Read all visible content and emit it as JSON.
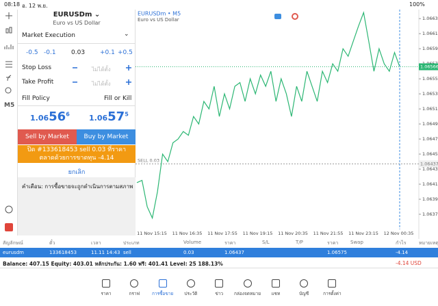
{
  "status_bar": {
    "time": "08:18",
    "date": "อ. 12 พ.ย.",
    "battery": "100%"
  },
  "sidebar": {
    "timeframe": "M5"
  },
  "order": {
    "symbol": "EURUSDm",
    "description": "Euro vs US Dollar",
    "execution": "Market Execution",
    "volume_steps": [
      "-0.5",
      "-0.1",
      "+0.1",
      "+0.5"
    ],
    "volume": "0.03",
    "stop_loss": {
      "label": "Stop Loss",
      "value": "ไม่ได้ตั้ง"
    },
    "take_profit": {
      "label": "Take Profit",
      "value": "ไม่ได้ตั้ง"
    },
    "fill_policy": {
      "label": "Fill Policy",
      "value": "Fill or Kill"
    },
    "bid": {
      "big": "1.06",
      "main": "56",
      "small": "6"
    },
    "ask": {
      "big": "1.06",
      "main": "57",
      "small": "5"
    },
    "sell_button": "Sell by Market",
    "buy_button": "Buy by Market",
    "close_notice": "ปิด #133618453 sell 0.03 ที่ราคาตลาดด้วยการขาดทุน -4.14",
    "cancel": "ยกเลิก",
    "warning": "คำเตือน: การซื้อขายจะถูกดำเนินการตามสภาพตลาด..."
  },
  "chart": {
    "type": "line",
    "title": "EURUSDm • M5",
    "subtitle": "Euro vs US Dollar",
    "color": "#2bb673",
    "ylim": [
      1.0635,
      1.06642
    ],
    "yticks": [
      {
        "value": 1.0663,
        "label": "1.06630"
      },
      {
        "value": 1.0661,
        "label": "1.06610"
      },
      {
        "value": 1.0659,
        "label": "1.06590"
      },
      {
        "value": 1.0657,
        "label": "1.06570"
      },
      {
        "value": 1.0655,
        "label": "1.06550"
      },
      {
        "value": 1.0653,
        "label": "1.06530"
      },
      {
        "value": 1.0651,
        "label": "1.06510"
      },
      {
        "value": 1.0649,
        "label": "1.06490"
      },
      {
        "value": 1.0647,
        "label": "1.06470"
      },
      {
        "value": 1.0645,
        "label": "1.06450"
      },
      {
        "value": 1.0643,
        "label": "1.06430"
      },
      {
        "value": 1.0641,
        "label": "1.06410"
      },
      {
        "value": 1.0639,
        "label": "1.06390"
      },
      {
        "value": 1.0637,
        "label": "1.06370"
      }
    ],
    "xticks": [
      "11 Nov 15:15",
      "11 Nov 16:35",
      "11 Nov 17:55",
      "11 Nov 19:15",
      "11 Nov 20:35",
      "11 Nov 21:55",
      "11 Nov 23:15",
      "12 Nov 00:35"
    ],
    "values": [
      1.06412,
      1.06415,
      1.0638,
      1.06365,
      1.064,
      1.0645,
      1.0644,
      1.06465,
      1.0647,
      1.0648,
      1.06475,
      1.065,
      1.0649,
      1.0652,
      1.0651,
      1.0654,
      1.065,
      1.0653,
      1.0651,
      1.0654,
      1.06545,
      1.0652,
      1.0655,
      1.0653,
      1.06555,
      1.0654,
      1.0656,
      1.0652,
      1.0655,
      1.0653,
      1.065,
      1.0654,
      1.0652,
      1.0656,
      1.0654,
      1.0652,
      1.0656,
      1.06545,
      1.0657,
      1.0656,
      1.0659,
      1.0658,
      1.066,
      1.0662,
      1.06638,
      1.066,
      1.0656,
      1.0659,
      1.0657,
      1.0656,
      1.06585,
      1.06566
    ],
    "current_price": {
      "value": 1.06566,
      "label": "1.06566"
    },
    "sell_line": {
      "value": 1.06437,
      "label": "1.06437",
      "text": "SELL 0.03"
    }
  },
  "positions": {
    "headers": [
      "สัญลักษณ์",
      "ตั๋ว",
      "เวลา",
      "ประเภท",
      "Volume",
      "ราคา",
      "S/L",
      "T/P",
      "ราคา",
      "Swap",
      "กำไร",
      "หมายเหตุ"
    ],
    "row": [
      {
        "col": 0,
        "text": "eurusdm"
      },
      {
        "col": 1,
        "text": "133618453"
      },
      {
        "col": 2,
        "text": "11.11 14:43"
      },
      {
        "col": 3,
        "text": "sell"
      },
      {
        "col": 4,
        "text": "0.03"
      },
      {
        "col": 5,
        "text": "1.06437"
      },
      {
        "col": 8,
        "text": "1.06575"
      },
      {
        "col": 10,
        "text": "-4.14"
      }
    ],
    "summary": "Balance: 407.15 Equity: 403.01 หลักประกัน: 1.60 ฟรี: 401.41 Level: 25 188.13%",
    "profit": "-4.14",
    "currency": "USD"
  },
  "nav": {
    "items": [
      "ราคา",
      "กราฟ",
      "การซื้อขาย",
      "ประวัติ",
      "ข่าว",
      "กล่องจดหมาย",
      "แชท",
      "บัญชี",
      "การตั้งค่า"
    ],
    "active": 2
  }
}
